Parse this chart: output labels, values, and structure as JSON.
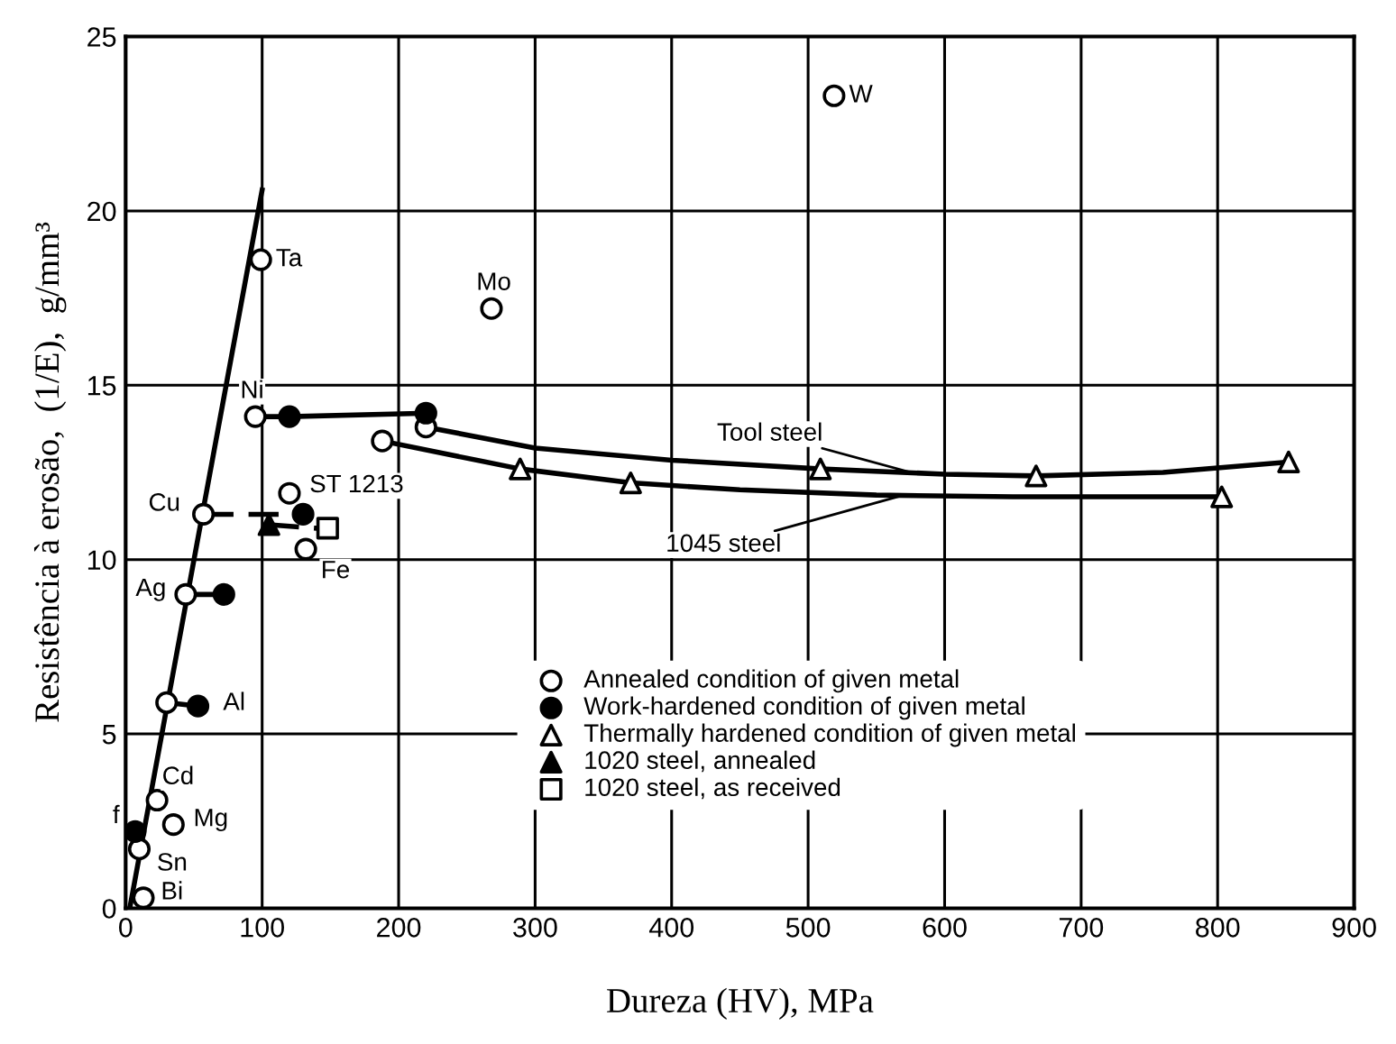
{
  "chart_data": {
    "type": "scatter",
    "xlabel": "Dureza (HV), MPa",
    "ylabel": "Resistência à erosão,  (1/E),  g/mm³",
    "xlim": [
      0,
      900
    ],
    "ylim": [
      0,
      25
    ],
    "xticks": [
      0,
      100,
      200,
      300,
      400,
      500,
      600,
      700,
      800,
      900
    ],
    "yticks": [
      0,
      5,
      10,
      15,
      20,
      25
    ],
    "grid": true,
    "legend": "bottom",
    "series": [
      {
        "type": "line",
        "color": "#000000",
        "line_style": "solid",
        "marker": "none",
        "x": [
          3,
          100
        ],
        "values": [
          0,
          20.6
        ]
      },
      {
        "type": "line",
        "color": "#000000",
        "line_style": "solid",
        "marker": "none",
        "x": [
          95,
          120,
          220
        ],
        "values": [
          14.1,
          14.1,
          14.2
        ]
      },
      {
        "type": "line",
        "color": "#000000",
        "line_style": "dashed",
        "marker": "none",
        "x": [
          57,
          130
        ],
        "values": [
          11.3,
          11.3
        ]
      },
      {
        "type": "line",
        "color": "#000000",
        "line_style": "dashed",
        "marker": "none",
        "x": [
          105,
          140
        ],
        "values": [
          11.0,
          10.9
        ]
      },
      {
        "type": "line",
        "color": "#000000",
        "line_style": "solid",
        "marker": "none",
        "x": [
          44,
          72
        ],
        "values": [
          9.0,
          9.0
        ]
      },
      {
        "type": "line",
        "color": "#000000",
        "line_style": "solid",
        "marker": "none",
        "x": [
          30,
          53
        ],
        "values": [
          5.9,
          5.8
        ]
      },
      {
        "type": "line",
        "color": "#000000",
        "line_style": "solid",
        "marker": "none",
        "x": [
          220,
          300,
          400,
          509,
          600,
          667,
          760,
          852
        ],
        "values": [
          13.8,
          13.2,
          12.85,
          12.6,
          12.45,
          12.4,
          12.5,
          12.8
        ]
      },
      {
        "type": "line",
        "color": "#000000",
        "line_style": "solid",
        "marker": "none",
        "x": [
          188,
          289,
          370,
          450,
          550,
          650,
          803
        ],
        "values": [
          13.4,
          12.6,
          12.2,
          12.0,
          11.85,
          11.8,
          11.8
        ]
      },
      {
        "name": "Annealed condition of given metal",
        "color": "#ffffff",
        "marker": "circle",
        "x": [
          13,
          10,
          35,
          23,
          30,
          44,
          57,
          132,
          120,
          95,
          99,
          268,
          519,
          188,
          220
        ],
        "values": [
          0.3,
          1.7,
          2.4,
          3.1,
          5.9,
          9.0,
          11.3,
          10.3,
          11.9,
          14.1,
          18.6,
          17.2,
          23.3,
          13.4,
          13.8
        ]
      },
      {
        "name": "Work-hardened condition of given metal",
        "color": "#000000",
        "marker": "circle",
        "x": [
          120,
          220,
          130,
          72,
          53,
          7
        ],
        "values": [
          14.1,
          14.2,
          11.3,
          9.0,
          5.8,
          2.2
        ]
      },
      {
        "name": "Thermally hardened condition of given metal",
        "color": "#ffffff",
        "marker": "triangle",
        "x": [
          289,
          370,
          803,
          509,
          667,
          852
        ],
        "values": [
          12.6,
          12.2,
          11.8,
          12.6,
          12.4,
          12.8
        ]
      },
      {
        "name": "1020 steel, annealed",
        "color": "#000000",
        "marker": "triangle",
        "x": [
          105
        ],
        "values": [
          11.0
        ]
      },
      {
        "name": "1020 steel, as received",
        "color": "#ffffff",
        "marker": "square",
        "x": [
          148
        ],
        "values": [
          10.9
        ]
      }
    ],
    "annotations": [
      {
        "text": "Bi",
        "x": 13,
        "y": 0.3
      },
      {
        "text": "Sn",
        "x": 10,
        "y": 1.7
      },
      {
        "text": "Mg",
        "x": 35,
        "y": 2.4
      },
      {
        "text": "Cd",
        "x": 23,
        "y": 3.1
      },
      {
        "text": "f",
        "x": 7,
        "y": 2.2
      },
      {
        "text": "Al",
        "x": 53,
        "y": 5.8
      },
      {
        "text": "Ag",
        "x": 44,
        "y": 9.0
      },
      {
        "text": "Cu",
        "x": 57,
        "y": 11.3
      },
      {
        "text": "Fe",
        "x": 132,
        "y": 10.3
      },
      {
        "text": "ST 1213",
        "x": 120,
        "y": 11.9
      },
      {
        "text": "Ni",
        "x": 95,
        "y": 14.1
      },
      {
        "text": "Ta",
        "x": 99,
        "y": 18.6
      },
      {
        "text": "Mo",
        "x": 268,
        "y": 17.2
      },
      {
        "text": "W",
        "x": 519,
        "y": 23.3
      },
      {
        "text": "Tool steel",
        "x": 580,
        "y": 12.45
      },
      {
        "text": "1045 steel",
        "x": 570,
        "y": 11.85
      }
    ]
  }
}
